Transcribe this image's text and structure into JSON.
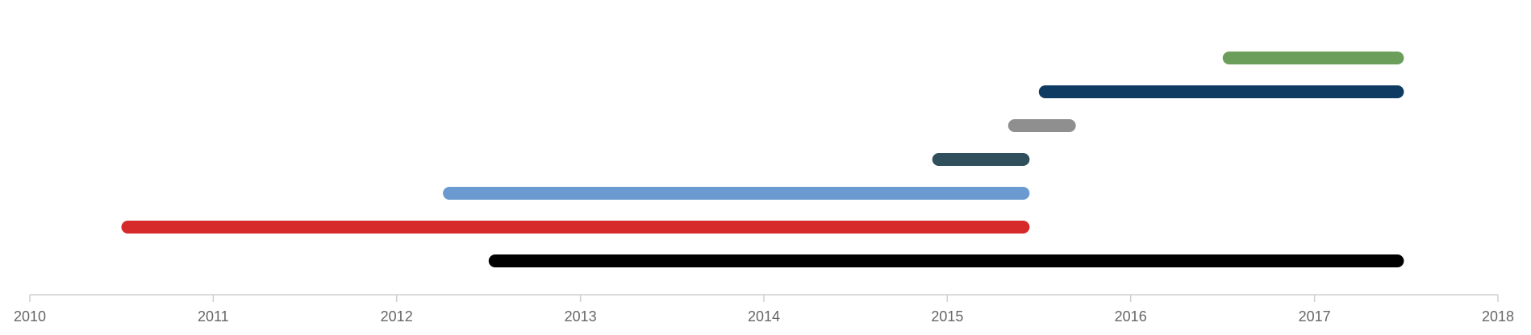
{
  "chart_data": {
    "type": "bar",
    "orientation": "horizontal-range",
    "title": "",
    "xlabel": "",
    "ylabel": "",
    "xlim": [
      "2010-01-01",
      "2018-01-01"
    ],
    "x_ticks": [
      "2010",
      "2011",
      "2012",
      "2013",
      "2014",
      "2015",
      "2016",
      "2017",
      "2018"
    ],
    "grid": false,
    "legend": "none",
    "series": [
      {
        "start": "2016-07-15",
        "end": "2017-06-15",
        "color": "#6a9e5a"
      },
      {
        "start": "2015-07-15",
        "end": "2017-06-15",
        "color": "#0f3b63"
      },
      {
        "start": "2015-05-15",
        "end": "2015-09-01",
        "color": "#8f8f8f"
      },
      {
        "start": "2014-12-15",
        "end": "2015-06-01",
        "color": "#2f4f5d"
      },
      {
        "start": "2012-04-15",
        "end": "2015-06-01",
        "color": "#6a9acf"
      },
      {
        "start": "2010-07-15",
        "end": "2015-06-01",
        "color": "#d62a2a"
      },
      {
        "start": "2012-07-15",
        "end": "2017-06-15",
        "color": "#000000"
      }
    ]
  }
}
